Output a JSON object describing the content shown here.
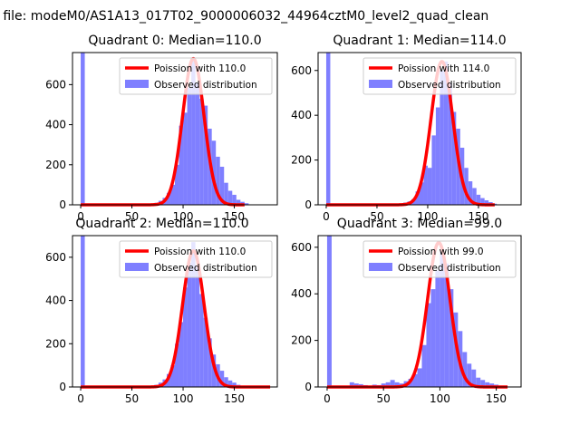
{
  "figure": {
    "suptitle": "n file: modeM0/AS1A13_017T02_9000006032_44964cztM0_level2_quad_clean"
  },
  "colors": {
    "histogram": "#7f7fff",
    "poisson": "#ff0000",
    "axis": "#000000",
    "background": "#ffffff"
  },
  "chart_data": [
    {
      "type": "bar",
      "title": "Quadrant 0: Median=110.0",
      "xlim": [
        -8,
        192
      ],
      "ylim": [
        0,
        760
      ],
      "xticks": [
        0,
        50,
        100,
        150
      ],
      "yticks": [
        0,
        200,
        400,
        600
      ],
      "legend": {
        "position": "top-right",
        "entries": [
          "Poission with 110.0",
          "Observed distribution"
        ]
      },
      "series": [
        {
          "name": "Observed distribution",
          "kind": "histogram",
          "bin_width": 4,
          "x": [
            0,
            72,
            76,
            80,
            84,
            88,
            92,
            96,
            100,
            104,
            108,
            112,
            116,
            120,
            124,
            128,
            132,
            136,
            140,
            144,
            148,
            152,
            156,
            160
          ],
          "values": [
            760,
            10,
            20,
            35,
            60,
            100,
            200,
            395,
            460,
            585,
            720,
            610,
            530,
            495,
            380,
            320,
            240,
            190,
            110,
            70,
            50,
            25,
            15,
            8
          ]
        },
        {
          "name": "Poission with 110.0",
          "kind": "curve",
          "mean": 110.0,
          "peak": 730,
          "x_range": [
            0,
            160
          ]
        }
      ]
    },
    {
      "type": "bar",
      "title": "Quadrant 1: Median=114.0",
      "xlim": [
        -8,
        192
      ],
      "ylim": [
        0,
        680
      ],
      "xticks": [
        0,
        50,
        100,
        150
      ],
      "yticks": [
        0,
        200,
        400,
        600
      ],
      "legend": {
        "position": "top-right",
        "entries": [
          "Poission with 114.0",
          "Observed distribution"
        ]
      },
      "series": [
        {
          "name": "Observed distribution",
          "kind": "histogram",
          "bin_width": 4,
          "x": [
            0,
            72,
            76,
            80,
            84,
            88,
            92,
            96,
            100,
            104,
            108,
            112,
            116,
            120,
            124,
            128,
            132,
            136,
            140,
            144,
            148,
            152,
            156,
            160,
            164
          ],
          "values": [
            680,
            5,
            10,
            15,
            25,
            60,
            100,
            175,
            165,
            310,
            435,
            600,
            640,
            545,
            415,
            340,
            255,
            165,
            105,
            75,
            45,
            30,
            20,
            12,
            5
          ]
        },
        {
          "name": "Poission with 114.0",
          "kind": "curve",
          "mean": 114.0,
          "peak": 640,
          "x_range": [
            0,
            166
          ]
        }
      ]
    },
    {
      "type": "bar",
      "title": "Quadrant 2: Median=110.0",
      "xlim": [
        -8,
        192
      ],
      "ylim": [
        0,
        700
      ],
      "xticks": [
        0,
        50,
        100,
        150
      ],
      "yticks": [
        0,
        200,
        400,
        600
      ],
      "legend": {
        "position": "top-right",
        "entries": [
          "Poission with 110.0",
          "Observed distribution"
        ]
      },
      "series": [
        {
          "name": "Observed distribution",
          "kind": "histogram",
          "bin_width": 4,
          "x": [
            0,
            72,
            76,
            80,
            84,
            88,
            92,
            96,
            100,
            104,
            108,
            112,
            116,
            120,
            124,
            128,
            132,
            136,
            140,
            144,
            148,
            152,
            156
          ],
          "values": [
            700,
            10,
            20,
            35,
            60,
            100,
            200,
            300,
            460,
            575,
            670,
            560,
            430,
            320,
            225,
            150,
            105,
            75,
            45,
            30,
            20,
            10,
            5
          ]
        },
        {
          "name": "Poission with 110.0",
          "kind": "curve",
          "mean": 110.0,
          "peak": 630,
          "x_range": [
            0,
            185
          ]
        }
      ]
    },
    {
      "type": "bar",
      "title": "Quadrant 3: Median=99.0",
      "xlim": [
        -8,
        172
      ],
      "ylim": [
        0,
        650
      ],
      "xticks": [
        0,
        50,
        100,
        150
      ],
      "yticks": [
        0,
        200,
        400,
        600
      ],
      "legend": {
        "position": "top-right",
        "entries": [
          "Poission with 99.0",
          "Observed distribution"
        ]
      },
      "series": [
        {
          "name": "Observed distribution",
          "kind": "histogram",
          "bin_width": 4,
          "x": [
            0,
            20,
            24,
            28,
            32,
            36,
            40,
            44,
            48,
            52,
            56,
            60,
            64,
            68,
            72,
            76,
            80,
            84,
            88,
            92,
            96,
            100,
            104,
            108,
            112,
            116,
            120,
            124,
            128,
            132,
            136,
            140,
            144,
            148,
            152,
            156
          ],
          "values": [
            650,
            20,
            15,
            12,
            8,
            5,
            10,
            8,
            15,
            20,
            30,
            20,
            15,
            25,
            35,
            55,
            80,
            180,
            360,
            420,
            500,
            580,
            530,
            420,
            320,
            240,
            150,
            100,
            75,
            40,
            30,
            20,
            15,
            10,
            5,
            3
          ]
        },
        {
          "name": "Poission with 99.0",
          "kind": "curve",
          "mean": 99.0,
          "peak": 620,
          "x_range": [
            0,
            160
          ]
        }
      ]
    }
  ]
}
